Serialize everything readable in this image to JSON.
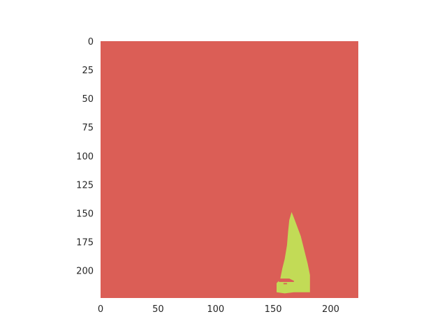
{
  "chart_data": {
    "type": "heatmap",
    "title": "",
    "xlabel": "",
    "ylabel": "",
    "image_size": [
      224,
      224
    ],
    "xlim": [
      0,
      224
    ],
    "ylim": [
      224,
      0
    ],
    "grid": false,
    "background_class": {
      "name": "background",
      "color": "#db5e56"
    },
    "mask_class": {
      "name": "mask",
      "color": "#c2db56"
    },
    "x_ticks": [
      0,
      50,
      100,
      150,
      200
    ],
    "x_tick_labels": [
      "0",
      "50",
      "100",
      "150",
      "200"
    ],
    "y_ticks": [
      0,
      25,
      50,
      75,
      100,
      125,
      150,
      175,
      200
    ],
    "y_tick_labels": [
      "0",
      "25",
      "50",
      "75",
      "100",
      "125",
      "150",
      "175",
      "200"
    ],
    "mask_polygon": [
      [
        166,
        149
      ],
      [
        168,
        154
      ],
      [
        171,
        162
      ],
      [
        174,
        170
      ],
      [
        176,
        178
      ],
      [
        178,
        186
      ],
      [
        180,
        194
      ],
      [
        182,
        204
      ],
      [
        182,
        219
      ],
      [
        168,
        219
      ],
      [
        160,
        220
      ],
      [
        153,
        219
      ],
      [
        153,
        211
      ],
      [
        156,
        208
      ],
      [
        158,
        198
      ],
      [
        160,
        190
      ],
      [
        162,
        178
      ],
      [
        163,
        166
      ],
      [
        164,
        156
      ]
    ],
    "hole_polygon": [
      [
        155,
        207
      ],
      [
        164,
        207
      ],
      [
        168,
        209
      ],
      [
        168,
        210
      ],
      [
        160,
        210
      ],
      [
        155,
        210
      ]
    ],
    "speck_polygon": [
      [
        159,
        211
      ],
      [
        162,
        211
      ],
      [
        162,
        212
      ],
      [
        159,
        212
      ]
    ]
  }
}
